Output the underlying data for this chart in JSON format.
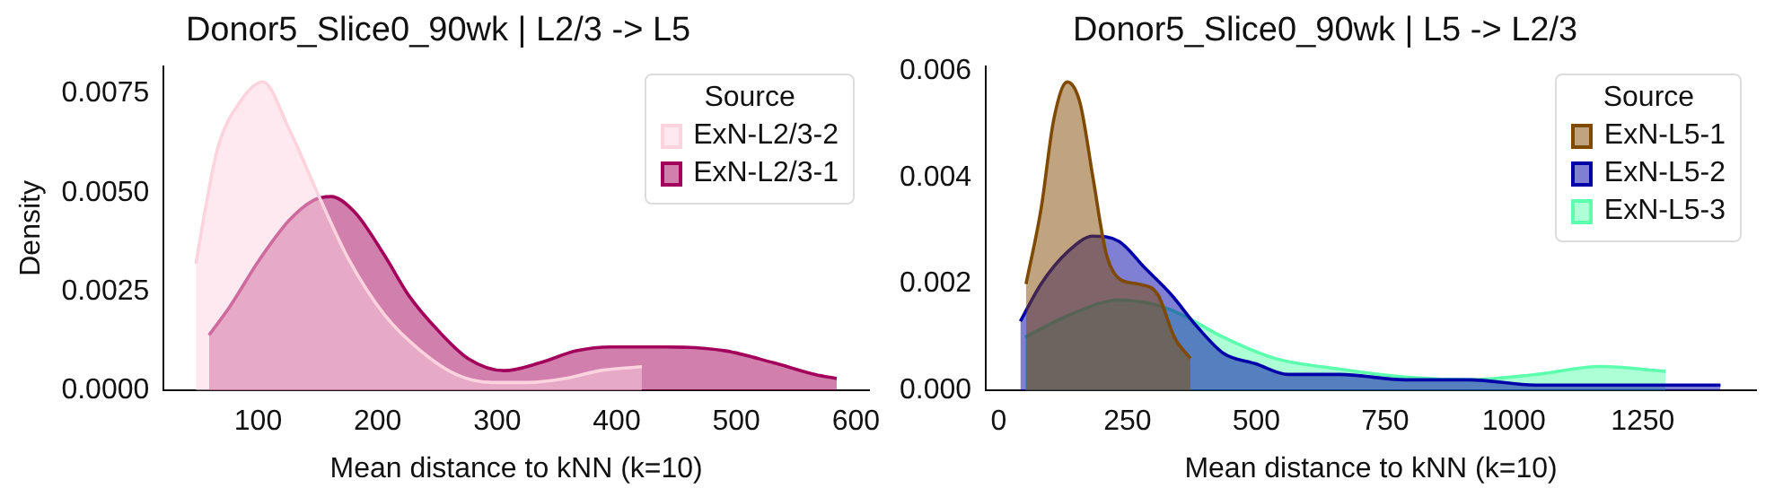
{
  "chart_data": [
    {
      "type": "area",
      "title": "Donor5_Slice0_90wk | L2/3 -> L5",
      "xlabel": "Mean distance to kNN (k=10)",
      "ylabel": "Density",
      "legend_title": "Source",
      "legend": "top right",
      "grid": false,
      "xlim": [
        21,
        611
      ],
      "xticks": [
        100,
        200,
        300,
        400,
        500,
        600
      ],
      "ylim": [
        0,
        0.0082
      ],
      "yticks": [
        {
          "value": 0,
          "label": "0.0000"
        },
        {
          "value": 0.0025,
          "label": "0.0025"
        },
        {
          "value": 0.005,
          "label": "0.0050"
        },
        {
          "value": 0.0075,
          "label": "0.0075"
        }
      ],
      "series": [
        {
          "name": "ExN-L2/3-2",
          "color": "#fcd3df",
          "x": [
            48,
            56,
            66,
            85,
            104,
            126,
            151,
            176,
            206,
            236,
            266,
            296,
            326,
            356,
            386,
            421
          ],
          "values": [
            0.0032,
            0.0046,
            0.0061,
            0.0073,
            0.0078,
            0.0066,
            0.0049,
            0.0033,
            0.0019,
            0.001,
            0.0004,
            0.0002,
            0.0002,
            0.0003,
            0.0005,
            0.0006
          ]
        },
        {
          "name": "ExN-L2/3-1",
          "color": "#a3005c",
          "x": [
            59,
            76,
            101,
            126,
            146,
            161,
            181,
            206,
            226,
            251,
            276,
            306,
            336,
            366,
            396,
            441,
            491,
            531,
            566,
            584
          ],
          "values": [
            0.0014,
            0.0021,
            0.0033,
            0.0043,
            0.0048,
            0.0049,
            0.0045,
            0.0034,
            0.0024,
            0.0015,
            0.0008,
            0.0005,
            0.0007,
            0.001,
            0.0011,
            0.0011,
            0.001,
            0.0007,
            0.0004,
            0.0003
          ]
        }
      ]
    },
    {
      "type": "area",
      "title": "Donor5_Slice0_90wk | L5 -> L2/3",
      "xlabel": "Mean distance to kNN (k=10)",
      "legend_title": "Source",
      "legend": "top right",
      "grid": false,
      "xlim": [
        -25,
        1470
      ],
      "xticks": [
        0,
        250,
        500,
        750,
        1000,
        1250
      ],
      "ylim": [
        0,
        0.0061
      ],
      "yticks": [
        {
          "value": 0,
          "label": "0.000"
        },
        {
          "value": 0.002,
          "label": "0.002"
        },
        {
          "value": 0.004,
          "label": "0.004"
        },
        {
          "value": 0.006,
          "label": "0.006"
        }
      ],
      "series": [
        {
          "name": "ExN-L5-1",
          "color": "#7f4a00",
          "x": [
            53,
            82,
            107,
            133,
            158,
            183,
            208,
            234,
            271,
            309,
            341,
            372
          ],
          "values": [
            0.002,
            0.0034,
            0.0051,
            0.0058,
            0.0054,
            0.004,
            0.0026,
            0.0021,
            0.002,
            0.0018,
            0.001,
            0.0006
          ]
        },
        {
          "name": "ExN-L5-2",
          "color": "#0000a8",
          "x": [
            42,
            82,
            133,
            183,
            234,
            284,
            335,
            385,
            436,
            499,
            562,
            663,
            789,
            915,
            1042,
            1168,
            1294,
            1401
          ],
          "values": [
            0.0013,
            0.002,
            0.0026,
            0.0029,
            0.0028,
            0.0023,
            0.0018,
            0.0012,
            0.0007,
            0.0005,
            0.0003,
            0.0003,
            0.0002,
            0.0002,
            0.0001,
            0.0001,
            0.0001,
            0.0001
          ]
        },
        {
          "name": "ExN-L5-3",
          "color": "#5cffae",
          "x": [
            51,
            133,
            234,
            309,
            360,
            436,
            537,
            663,
            789,
            915,
            1042,
            1168,
            1294
          ],
          "values": [
            0.001,
            0.0014,
            0.0017,
            0.0016,
            0.0014,
            0.001,
            0.0006,
            0.0004,
            0.00025,
            0.0002,
            0.0003,
            0.00045,
            0.00036
          ]
        }
      ]
    }
  ]
}
